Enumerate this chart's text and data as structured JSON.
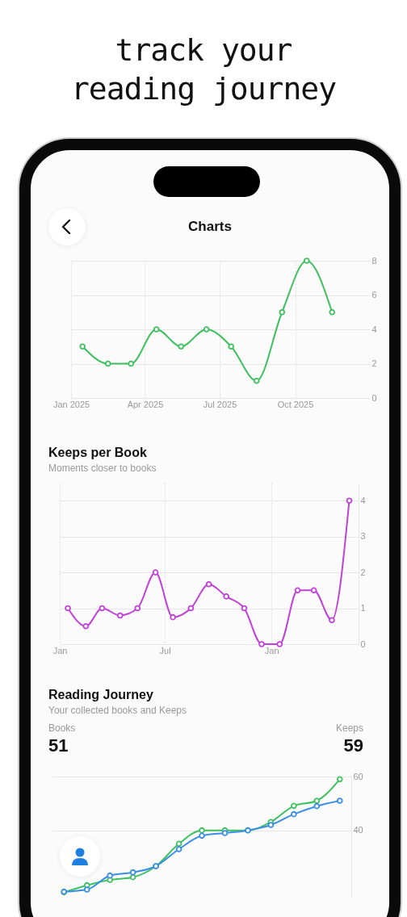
{
  "chart_data": [
    {
      "type": "line",
      "annotations": [
        "track your reading journey",
        "Charts"
      ],
      "x": [
        "2025-01-15",
        "2025-02-15",
        "2025-03-15",
        "2025-04-15",
        "2025-05-15",
        "2025-06-15",
        "2025-07-15",
        "2025-08-15",
        "2025-09-15",
        "2025-10-15",
        "2025-11-15"
      ],
      "series": [
        {
          "color": "#3fc060",
          "values": [
            3,
            2,
            2,
            4,
            3,
            4,
            3,
            1,
            5,
            8,
            5
          ]
        }
      ],
      "xlim": [
        "2025-01-01",
        "2025-12-31"
      ],
      "xticks": [
        {
          "value": "2025-01-01",
          "label": "Jan 2025"
        },
        {
          "value": "2025-04-01",
          "label": "Apr 2025"
        },
        {
          "value": "2025-07-01",
          "label": "Jul 2025"
        },
        {
          "value": "2025-10-01",
          "label": "Oct 2025"
        }
      ],
      "ylim": [
        0,
        8
      ],
      "yticks": [
        0,
        2,
        4,
        6,
        8
      ],
      "grid": true,
      "marker": "circle"
    },
    {
      "type": "line",
      "title": "Keeps per Book",
      "subtitle": "Moments closer to books",
      "x": [
        "2025-01-15",
        "2025-02-15",
        "2025-03-15",
        "2025-04-15",
        "2025-05-15",
        "2025-06-15",
        "2025-07-15",
        "2025-08-15",
        "2025-09-15",
        "2025-10-15",
        "2025-11-15",
        "2025-12-15",
        "2026-01-15",
        "2026-02-15",
        "2026-03-15",
        "2026-04-15",
        "2026-05-15"
      ],
      "series": [
        {
          "color": "#c040d8",
          "values": [
            1,
            0.5,
            1,
            0.8,
            1,
            2,
            0.75,
            1,
            1.67,
            1.33,
            1,
            0,
            0,
            1.5,
            1.5,
            0.67,
            4
          ]
        }
      ],
      "xlim": [
        "2025-01-01",
        "2026-05-31"
      ],
      "xticks": [
        {
          "value": "2025-01-01",
          "label": "Jan"
        },
        {
          "value": "2025-07-01",
          "label": "Jul"
        },
        {
          "value": "2026-01-01",
          "label": "Jan"
        }
      ],
      "ylim": [
        0,
        4.5
      ],
      "yticks": [
        0,
        1,
        2,
        3,
        4
      ],
      "grid": true,
      "marker": "circle"
    },
    {
      "type": "line",
      "title": "Reading Journey",
      "subtitle": "Your collected books and Keeps",
      "annotations": [
        "Books",
        "51",
        "Keeps",
        "59"
      ],
      "categories": [
        null,
        null,
        null,
        null,
        null,
        null,
        null,
        null,
        null,
        null,
        null,
        null,
        null
      ],
      "series": [
        {
          "color": "#3fc060",
          "values": [
            17,
            19.6,
            21.6,
            22.6,
            26.7,
            35,
            40,
            40,
            40,
            43.1,
            49.1,
            51,
            59
          ]
        },
        {
          "color": "#3a8ee6",
          "values": [
            17.2,
            18,
            23.2,
            24.4,
            26.7,
            33,
            38,
            39,
            40,
            42,
            46,
            49,
            51
          ]
        }
      ],
      "ylim": [
        15,
        60
      ],
      "yticks": [
        40,
        60
      ],
      "grid": "y",
      "tick_labels": "y",
      "marker": "circle"
    }
  ]
}
